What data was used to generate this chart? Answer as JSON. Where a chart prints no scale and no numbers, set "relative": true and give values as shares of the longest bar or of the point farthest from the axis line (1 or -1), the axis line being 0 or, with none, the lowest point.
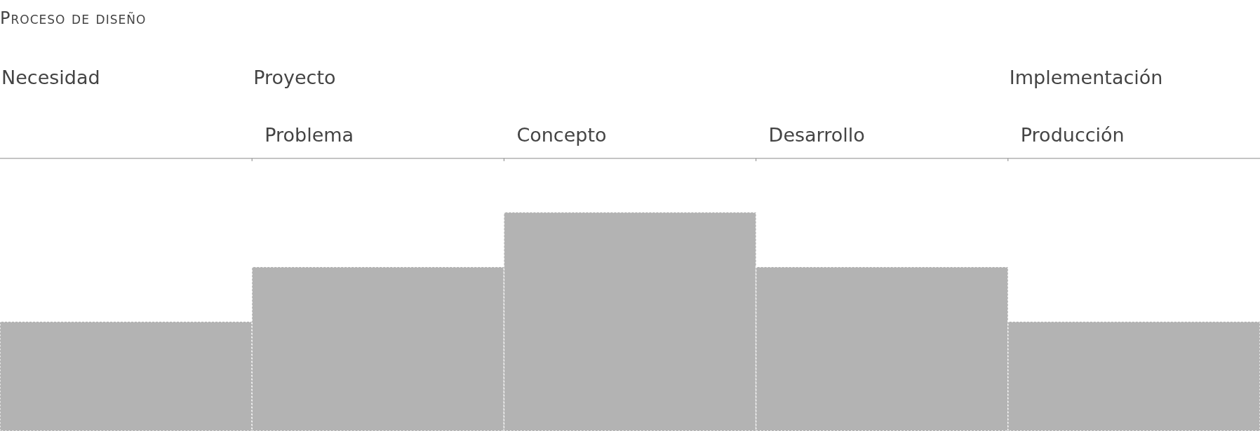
{
  "chart_data": {
    "type": "bar",
    "title": "Proceso de diseño",
    "categories": [
      null,
      "Problema",
      "Concepto",
      "Desarrollo",
      "Producción"
    ],
    "values": [
      0.5,
      0.75,
      1,
      0.75,
      0.5
    ],
    "relative": true,
    "color": "#b3b3b3",
    "annotations": [
      "Necesidad",
      "Proyecto",
      "Implementación"
    ]
  }
}
